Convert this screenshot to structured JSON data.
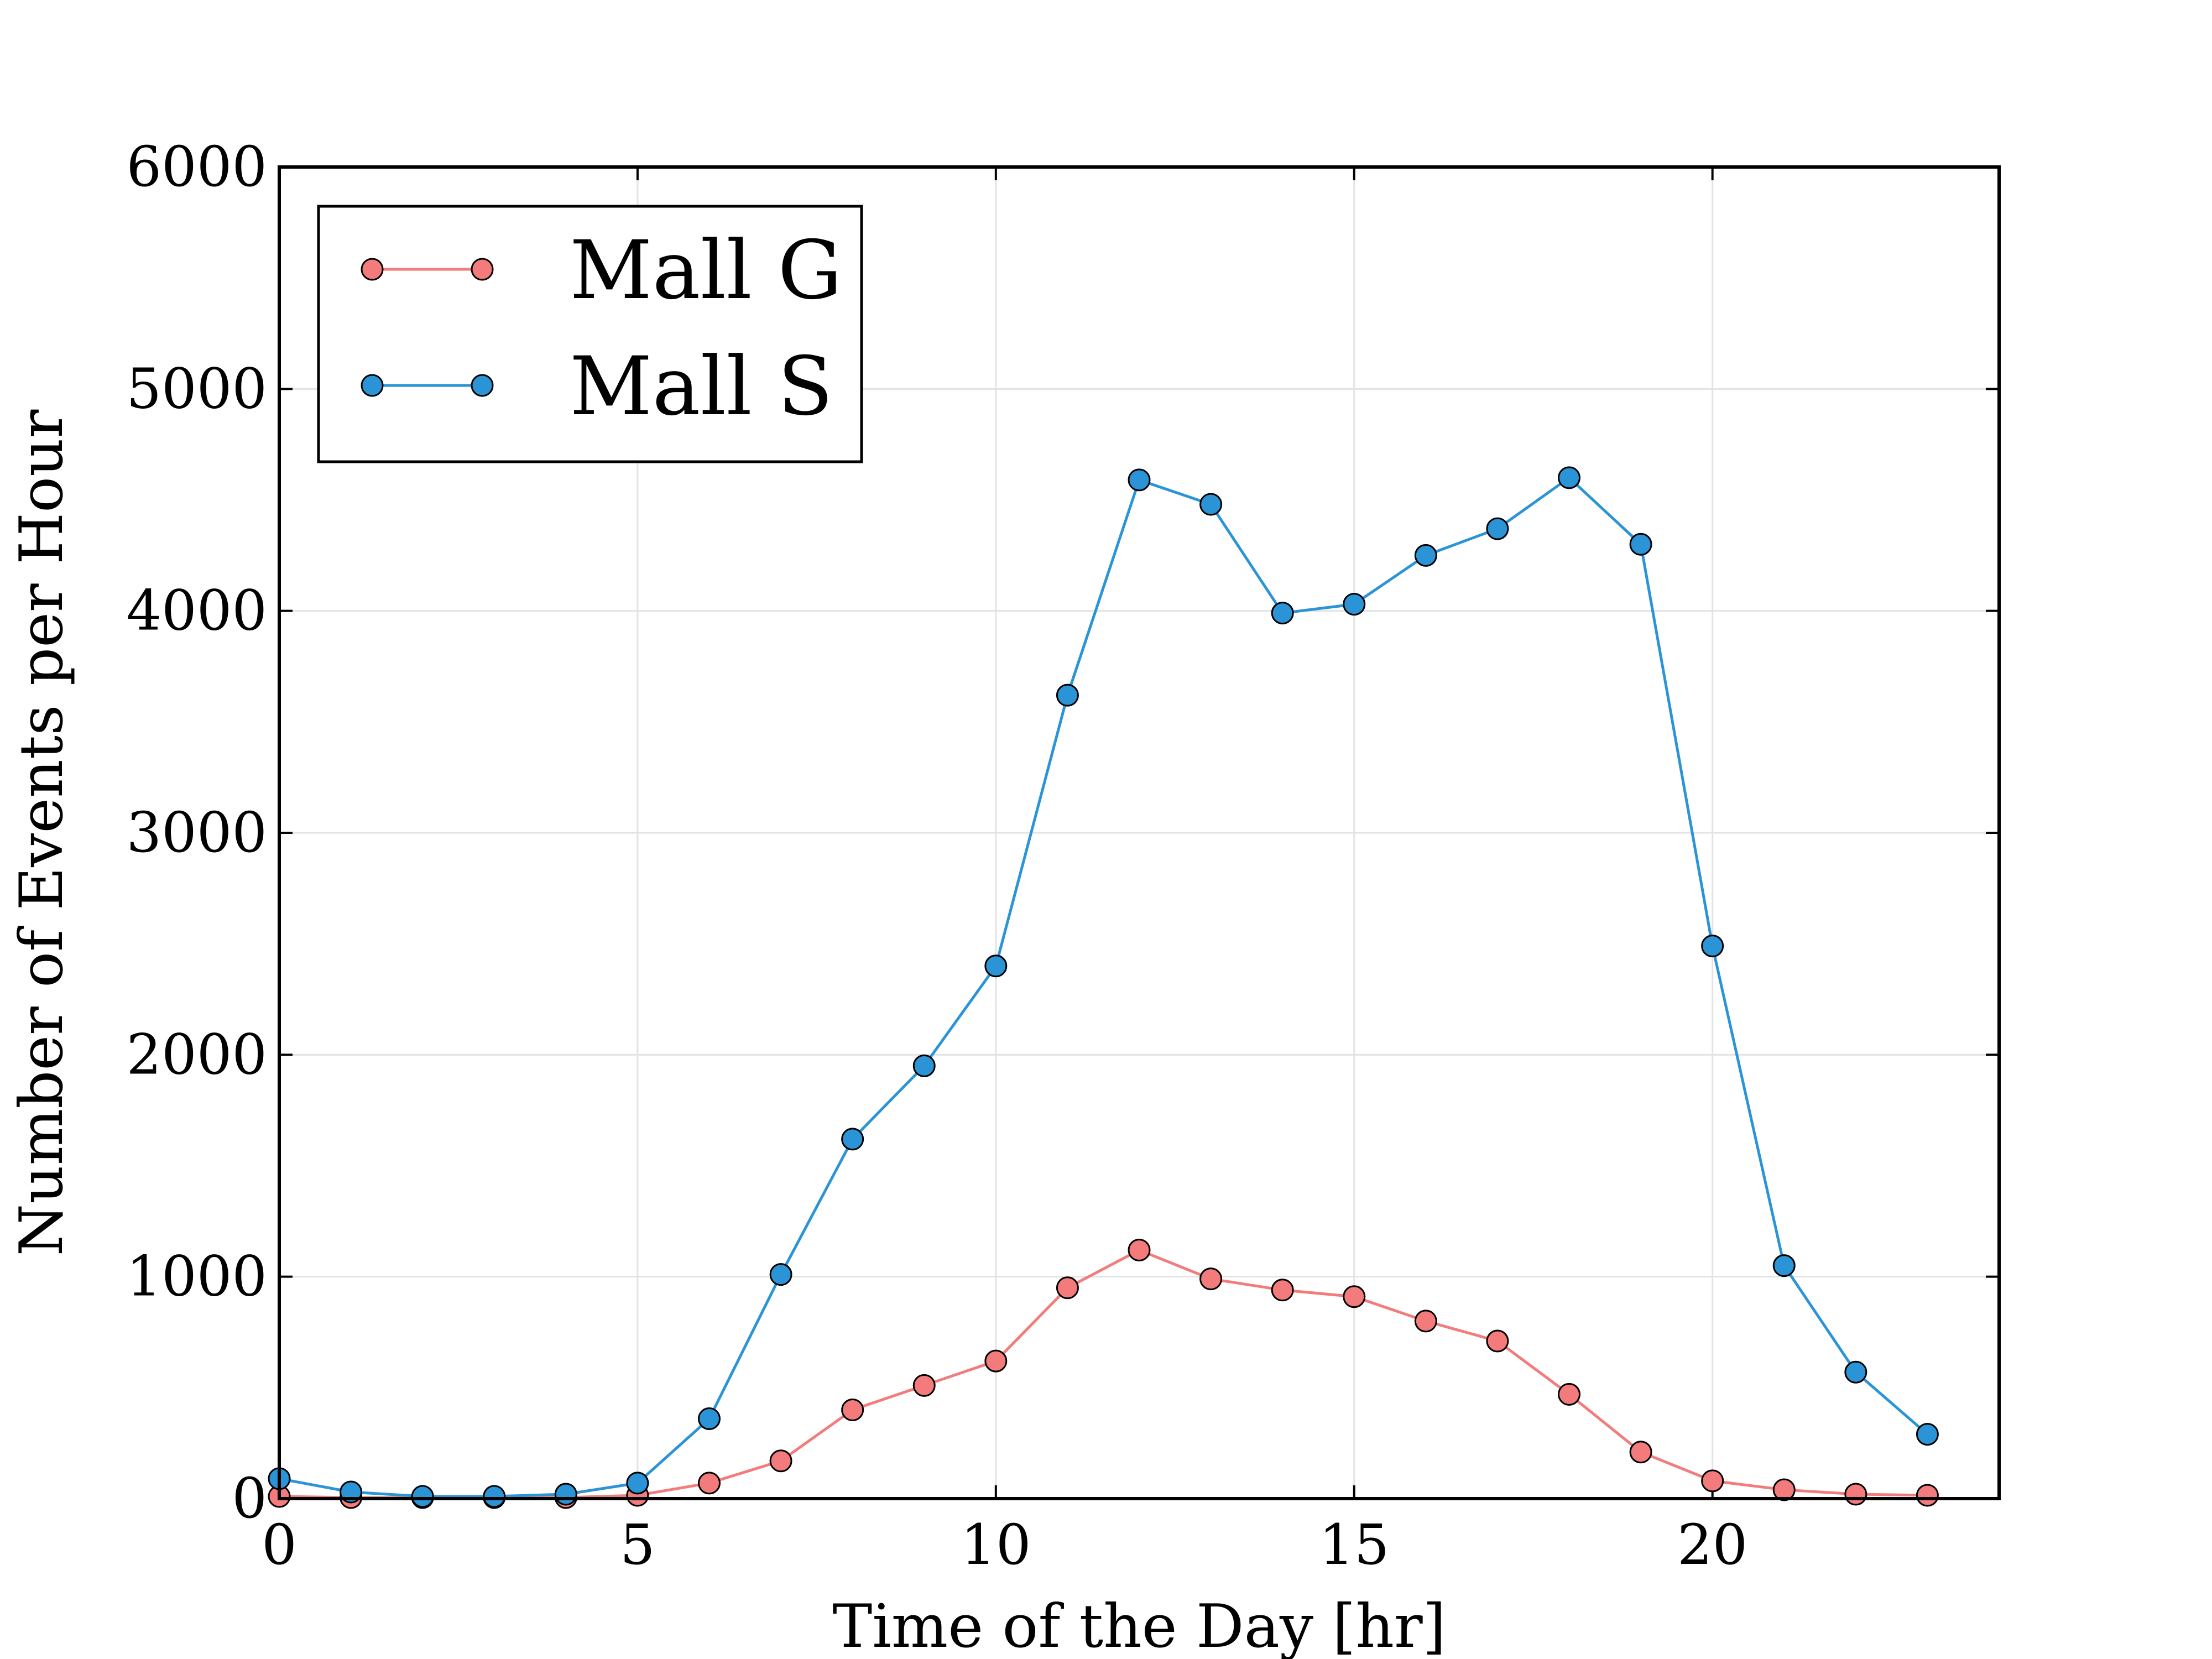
{
  "chart_data": {
    "type": "line",
    "title": "",
    "xlabel": "Time of the Day [hr]",
    "ylabel": "Number of Events per Hour",
    "xlim": [
      0,
      24
    ],
    "ylim": [
      0,
      6000
    ],
    "xticks": [
      0,
      5,
      10,
      15,
      20
    ],
    "yticks": [
      0,
      1000,
      2000,
      3000,
      4000,
      5000,
      6000
    ],
    "grid": true,
    "legend_position": "top-left",
    "x": [
      0,
      1,
      2,
      3,
      4,
      5,
      6,
      7,
      8,
      9,
      10,
      11,
      12,
      13,
      14,
      15,
      16,
      17,
      18,
      19,
      20,
      21,
      22,
      23
    ],
    "series": [
      {
        "name": "Mall G",
        "color": "#f47b7b",
        "marker": "circle",
        "values": [
          10,
          5,
          5,
          5,
          5,
          15,
          70,
          170,
          400,
          510,
          620,
          950,
          1120,
          990,
          940,
          910,
          800,
          710,
          470,
          210,
          80,
          40,
          20,
          15
        ]
      },
      {
        "name": "Mall S",
        "color": "#2b94d6",
        "marker": "circle",
        "values": [
          90,
          30,
          10,
          10,
          20,
          70,
          360,
          1010,
          1620,
          1950,
          2400,
          3620,
          4590,
          4480,
          3990,
          4030,
          4250,
          4370,
          4600,
          4300,
          2490,
          1050,
          570,
          290
        ]
      }
    ]
  }
}
